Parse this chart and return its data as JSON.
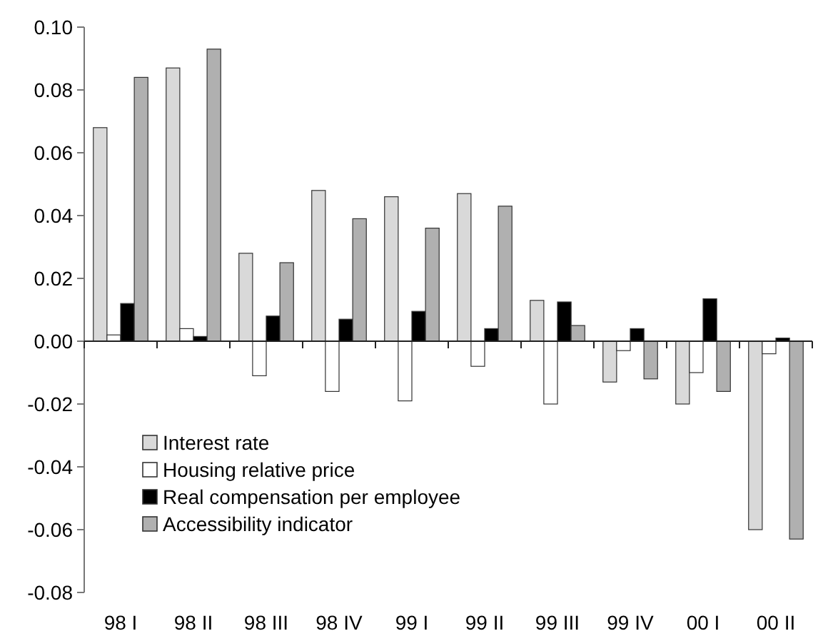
{
  "chart_data": {
    "type": "bar",
    "categories": [
      "98 I",
      "98 II",
      "98 III",
      "98 IV",
      "99 I",
      "99 II",
      "99 III",
      "99 IV",
      "00 I",
      "00 II"
    ],
    "series": [
      {
        "name": "Interest rate",
        "color": "#d9d9d9",
        "values": [
          0.068,
          0.087,
          0.028,
          0.048,
          0.046,
          0.047,
          0.013,
          -0.013,
          -0.02,
          -0.06
        ]
      },
      {
        "name": "Housing relative price",
        "color": "#ffffff",
        "values": [
          0.002,
          0.004,
          -0.011,
          -0.016,
          -0.019,
          -0.008,
          -0.02,
          -0.003,
          -0.01,
          -0.004
        ]
      },
      {
        "name": "Real compensation per employee",
        "color": "#000000",
        "values": [
          0.012,
          0.0015,
          0.008,
          0.007,
          0.0095,
          0.004,
          0.0125,
          0.004,
          0.0135,
          0.001
        ]
      },
      {
        "name": "Accessibility indicator",
        "color": "#b0b0b0",
        "values": [
          0.084,
          0.093,
          0.025,
          0.039,
          0.036,
          0.043,
          0.005,
          -0.012,
          -0.016,
          -0.063
        ]
      }
    ],
    "ylim": [
      -0.08,
      0.1
    ],
    "yticks": [
      {
        "value": 0.1,
        "label": "0.10"
      },
      {
        "value": 0.08,
        "label": "0.08"
      },
      {
        "value": 0.06,
        "label": "0.06"
      },
      {
        "value": 0.04,
        "label": "0.04"
      },
      {
        "value": 0.02,
        "label": "0.02"
      },
      {
        "value": 0,
        "label": "0.00"
      },
      {
        "value": -0.02,
        "label": "-0.02"
      },
      {
        "value": -0.04,
        "label": "-0.04"
      },
      {
        "value": -0.06,
        "label": "-0.06"
      },
      {
        "value": -0.08,
        "label": "-0.08"
      }
    ],
    "legend": "bottom left"
  }
}
